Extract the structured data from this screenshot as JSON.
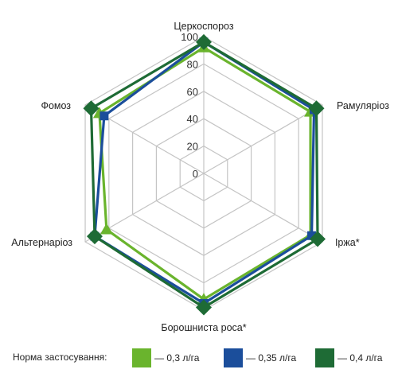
{
  "chart_data": {
    "type": "radar",
    "axes": [
      "Церкоспороз",
      "Рамуляріоз",
      "Іржа*",
      "Борошниста роса*",
      "Альтернаріоз",
      "Фомоз"
    ],
    "ticks": [
      "0",
      "20",
      "40",
      "60",
      "80",
      "100"
    ],
    "range": [
      0,
      100
    ],
    "grid": true,
    "series": [
      {
        "name": "— 0,3 л/га",
        "color": "#6ab42d",
        "values": [
          92,
          90,
          90,
          92,
          82,
          88
        ]
      },
      {
        "name": "— 0,35 л/га",
        "color": "#1b4e9b",
        "values": [
          96,
          93,
          91,
          95,
          92,
          84
        ]
      },
      {
        "name": "— 0,4 л/га",
        "color": "#1e6b35",
        "values": [
          96,
          95,
          96,
          98,
          92,
          95
        ]
      }
    ],
    "legend_title": "Норма застосування:",
    "legend_position": "bottom"
  },
  "colors": {
    "grid": "#c4c4c4",
    "text": "#222222"
  }
}
